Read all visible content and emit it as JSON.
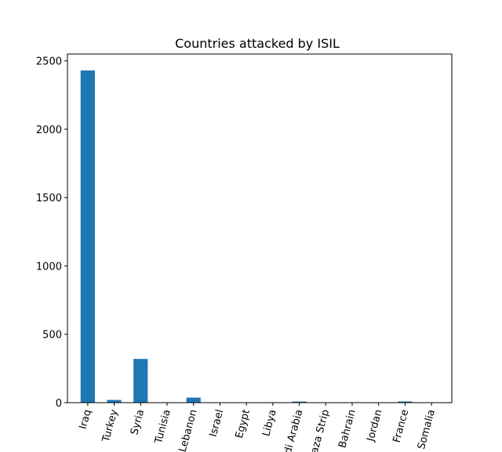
{
  "chart_data": {
    "type": "bar",
    "title": "Countries attacked by ISIL",
    "categories": [
      "Iraq",
      "Turkey",
      "Syria",
      "Tunisia",
      "Lebanon",
      "Israel",
      "Egypt",
      "Libya",
      "Saudi Arabia",
      "Gaza Strip",
      "Bahrain",
      "Jordan",
      "France",
      "Somalia"
    ],
    "values": [
      2430,
      20,
      320,
      3,
      37,
      2,
      2,
      3,
      8,
      2,
      2,
      2,
      9,
      2
    ],
    "color": "#1f77b4",
    "ylim": [
      0,
      2550
    ],
    "yticks": [
      0,
      500,
      1000,
      1500,
      2000,
      2500
    ],
    "grid": false
  }
}
